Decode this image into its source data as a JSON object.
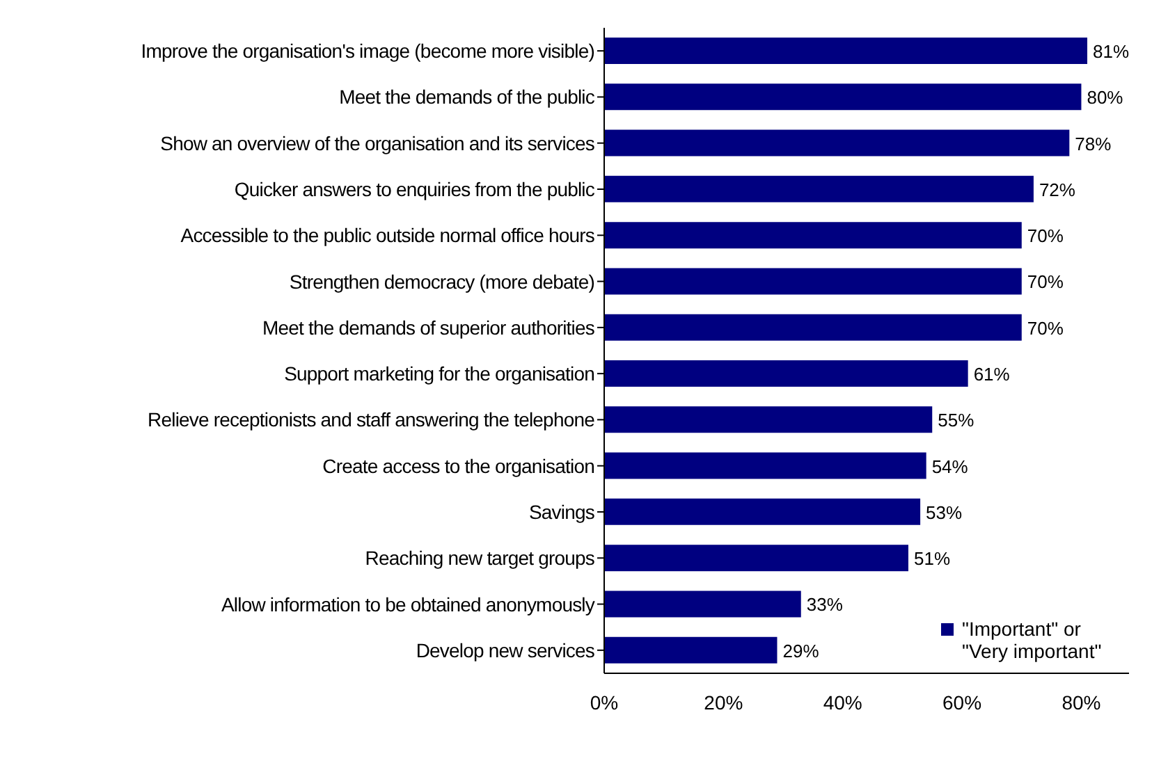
{
  "chart_data": {
    "type": "bar",
    "orientation": "horizontal",
    "categories": [
      "Improve the organisation's image (become more visible)",
      "Meet the demands of the public",
      "Show an overview of the organisation and its services",
      "Quicker answers to enquiries from the public",
      "Accessible to the public outside normal office hours",
      "Strengthen democracy (more debate)",
      "Meet the demands of superior authorities",
      "Support marketing for the organisation",
      "Relieve receptionists and staff answering the telephone",
      "Create access to the organisation",
      "Savings",
      "Reaching new target groups",
      "Allow information to be obtained anonymously",
      "Develop new services"
    ],
    "series": [
      {
        "name": "\"Important\" or \"Very important\"",
        "color": "#000080",
        "values": [
          81,
          80,
          78,
          72,
          70,
          70,
          70,
          61,
          55,
          54,
          53,
          51,
          33,
          29
        ],
        "value_labels": [
          "81%",
          "80%",
          "78%",
          "72%",
          "70%",
          "70%",
          "70%",
          "61%",
          "55%",
          "54%",
          "53%",
          "51%",
          "33%",
          "29%"
        ]
      }
    ],
    "xlim": [
      0,
      88
    ],
    "xticks": [
      {
        "value": 0,
        "label": "0%"
      },
      {
        "value": 20,
        "label": "20%"
      },
      {
        "value": 40,
        "label": "40%"
      },
      {
        "value": 60,
        "label": "60%"
      },
      {
        "value": 80,
        "label": "80%"
      }
    ],
    "grid": false,
    "legend": "bottom right"
  }
}
